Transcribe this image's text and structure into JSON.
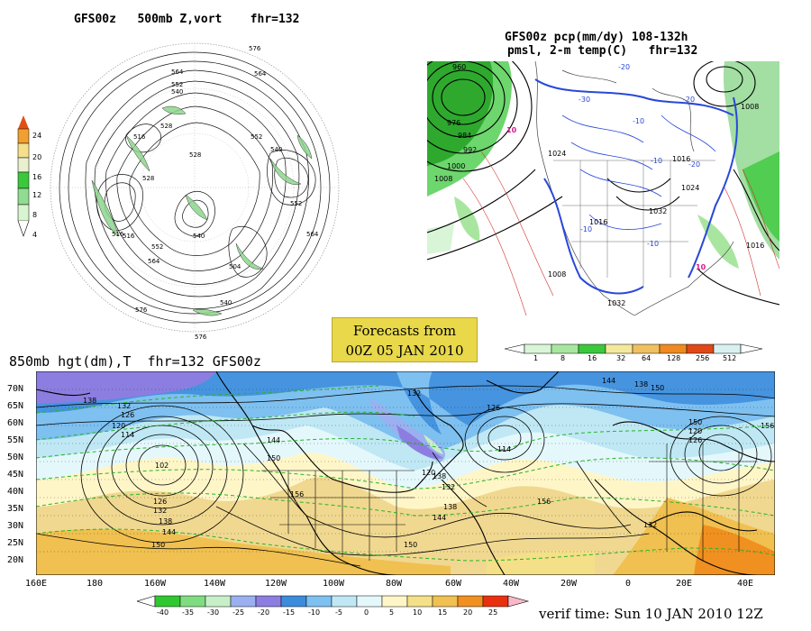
{
  "panel_500mb": {
    "title": "GFS00z   500mb Z,vort    fhr=132",
    "colorbar_labels": [
      "24",
      "20",
      "16",
      "12",
      "8",
      "4"
    ],
    "contour_labels": [
      "576",
      "564",
      "552",
      "540",
      "528",
      "516",
      "564",
      "552",
      "540",
      "528",
      "516",
      "564",
      "576",
      "552",
      "540",
      "504",
      "552",
      "516",
      "528",
      "540",
      "564",
      "576"
    ]
  },
  "panel_precip": {
    "title_line1": "GFS00z pcp(mm/dy) 108-132h",
    "title_line2": "pmsl, 2-m temp(C)   fhr=132",
    "pressure_labels": [
      "960",
      "976",
      "984",
      "992",
      "1000",
      "1008",
      "1024",
      "1032",
      "1016",
      "1024",
      "1008",
      "1016",
      "1032",
      "1008",
      "1016"
    ],
    "temp_labels": [
      "-20",
      "-30",
      "-10",
      "-20",
      "-10",
      "10",
      "-10",
      "-20",
      "-10",
      "10"
    ],
    "colorbar_labels": [
      "1",
      "8",
      "16",
      "32",
      "64",
      "128",
      "256",
      "512"
    ],
    "colorbar_colors": [
      "#d8f5d8",
      "#a8e6a0",
      "#3cc83c",
      "#f4e89c",
      "#f0c060",
      "#ee8a20",
      "#e04818",
      "#d8f0f0"
    ]
  },
  "forecast_box": {
    "line1": "Forecasts from",
    "line2": "00Z 05 JAN 2010"
  },
  "panel_850mb": {
    "title": "850mb hgt(dm),T  fhr=132 GFS00z",
    "lat_labels": [
      "70N",
      "65N",
      "60N",
      "55N",
      "50N",
      "45N",
      "40N",
      "35N",
      "30N",
      "25N",
      "20N"
    ],
    "lon_labels": [
      "160E",
      "180",
      "160W",
      "140W",
      "120W",
      "100W",
      "80W",
      "60W",
      "40W",
      "20W",
      "0",
      "20E",
      "40E"
    ],
    "height_labels": [
      "138",
      "132",
      "126",
      "120",
      "114",
      "102",
      "126",
      "132",
      "138",
      "144",
      "150",
      "144",
      "150",
      "156",
      "132",
      "138",
      "126",
      "120",
      "114",
      "132",
      "138",
      "144",
      "150",
      "156",
      "144",
      "150",
      "138",
      "150",
      "156",
      "120",
      "126",
      "132"
    ],
    "colorbar_labels": [
      "-40",
      "-35",
      "-30",
      "-25",
      "-20",
      "-15",
      "-10",
      "-5",
      "0",
      "5",
      "10",
      "15",
      "20",
      "25"
    ],
    "colorbar_colors": [
      "#30c830",
      "#80dc80",
      "#c8f0c8",
      "#9bb0f0",
      "#8c7ee0",
      "#3c8cdc",
      "#7ec0f0",
      "#bfe8f4",
      "#e4f8fc",
      "#fff6c8",
      "#f4e088",
      "#f0c050",
      "#f09020",
      "#e83010"
    ],
    "verif_time": "verif time: Sun 10 JAN 2010 12Z"
  }
}
